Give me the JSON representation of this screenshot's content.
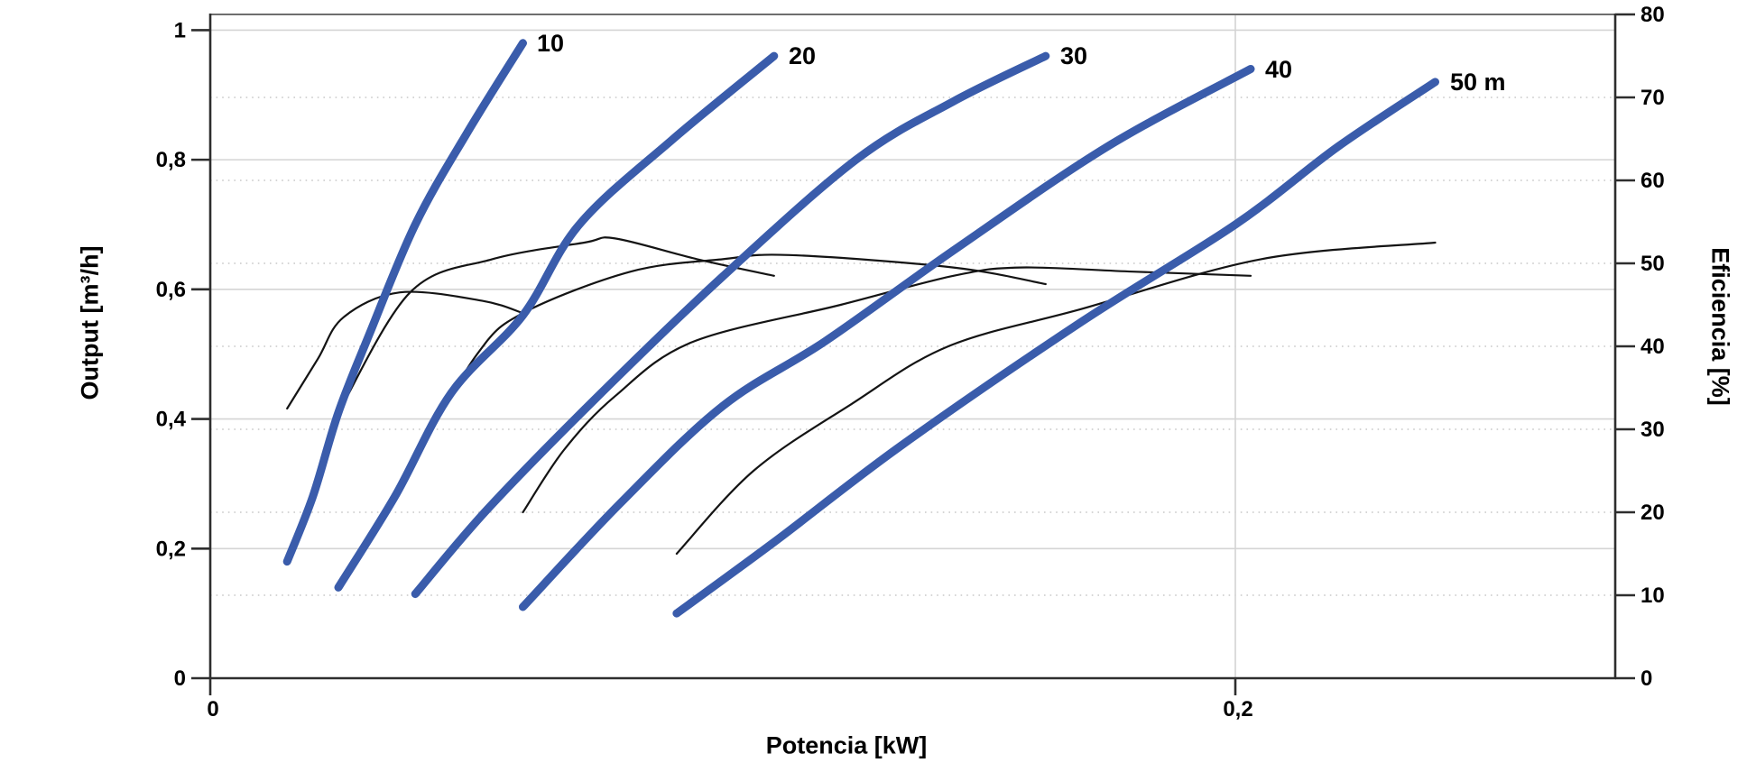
{
  "page": {
    "background": "#ffffff"
  },
  "chart_data": {
    "type": "line",
    "title": "",
    "xlabel": "Potencia [kW]",
    "ylabel_left": "Output [m³/h]",
    "ylabel_right": "Eficiencia [%]",
    "legend": "none",
    "x_axis": {
      "min": 0,
      "max": 0.274,
      "ticks": [
        {
          "v": 0,
          "label": "0"
        },
        {
          "v": 0.2,
          "label": "0,2"
        }
      ]
    },
    "y_axis_left": {
      "min": 0,
      "max": 1.024,
      "ticks": [
        {
          "v": 0,
          "label": "0"
        },
        {
          "v": 0.2,
          "label": "0,2"
        },
        {
          "v": 0.4,
          "label": "0,4"
        },
        {
          "v": 0.6,
          "label": "0,6"
        },
        {
          "v": 0.8,
          "label": "0,8"
        },
        {
          "v": 1,
          "label": "1"
        }
      ]
    },
    "y_axis_right": {
      "min": 0,
      "max": 80,
      "ticks": [
        {
          "v": 0,
          "label": "0"
        },
        {
          "v": 10,
          "label": "10"
        },
        {
          "v": 20,
          "label": "20"
        },
        {
          "v": 30,
          "label": "30"
        },
        {
          "v": 40,
          "label": "40"
        },
        {
          "v": 50,
          "label": "50"
        },
        {
          "v": 60,
          "label": "60"
        },
        {
          "v": 70,
          "label": "70"
        },
        {
          "v": 80,
          "label": "80"
        }
      ]
    },
    "grid": {
      "solid_output_lines": [
        0.2,
        0.4,
        0.6,
        0.8,
        1.0
      ],
      "dotted_efficiency_lines": [
        10,
        20,
        30,
        40,
        50,
        60,
        70
      ],
      "vertical_power_lines": [
        0.2
      ]
    },
    "pump_curves": [
      {
        "label": "10",
        "head_m": 10,
        "points_kw_m3h": [
          [
            0.015,
            0.18
          ],
          [
            0.02,
            0.28
          ],
          [
            0.025,
            0.41
          ],
          [
            0.031,
            0.53
          ],
          [
            0.04,
            0.7
          ],
          [
            0.05,
            0.84
          ],
          [
            0.061,
            0.98
          ]
        ]
      },
      {
        "label": "20",
        "head_m": 20,
        "points_kw_m3h": [
          [
            0.025,
            0.14
          ],
          [
            0.036,
            0.28
          ],
          [
            0.047,
            0.44
          ],
          [
            0.061,
            0.56
          ],
          [
            0.072,
            0.7
          ],
          [
            0.09,
            0.83
          ],
          [
            0.11,
            0.96
          ]
        ]
      },
      {
        "label": "30",
        "head_m": 30,
        "points_kw_m3h": [
          [
            0.04,
            0.13
          ],
          [
            0.054,
            0.26
          ],
          [
            0.075,
            0.43
          ],
          [
            0.1,
            0.62
          ],
          [
            0.126,
            0.8
          ],
          [
            0.145,
            0.89
          ],
          [
            0.163,
            0.96
          ]
        ]
      },
      {
        "label": "40",
        "head_m": 40,
        "points_kw_m3h": [
          [
            0.061,
            0.11
          ],
          [
            0.08,
            0.27
          ],
          [
            0.1,
            0.42
          ],
          [
            0.12,
            0.52
          ],
          [
            0.145,
            0.66
          ],
          [
            0.175,
            0.82
          ],
          [
            0.203,
            0.94
          ]
        ]
      },
      {
        "label": "50 m",
        "head_m": 50,
        "points_kw_m3h": [
          [
            0.091,
            0.1
          ],
          [
            0.11,
            0.21
          ],
          [
            0.135,
            0.36
          ],
          [
            0.17,
            0.55
          ],
          [
            0.2,
            0.7
          ],
          [
            0.22,
            0.82
          ],
          [
            0.239,
            0.92
          ]
        ]
      }
    ],
    "efficiency_curves": [
      {
        "head_m": 10,
        "points_kw_pct": [
          [
            0.015,
            32.5
          ],
          [
            0.021,
            38.5
          ],
          [
            0.026,
            43.5
          ],
          [
            0.037,
            46.5
          ],
          [
            0.053,
            45.5
          ],
          [
            0.061,
            44
          ]
        ]
      },
      {
        "head_m": 20,
        "points_kw_pct": [
          [
            0.025,
            32
          ],
          [
            0.039,
            46.5
          ],
          [
            0.055,
            50.5
          ],
          [
            0.073,
            52.5
          ],
          [
            0.079,
            53
          ],
          [
            0.095,
            50.5
          ],
          [
            0.11,
            48.5
          ]
        ]
      },
      {
        "head_m": 30,
        "points_kw_pct": [
          [
            0.04,
            26.5
          ],
          [
            0.052,
            39
          ],
          [
            0.061,
            44
          ],
          [
            0.082,
            49
          ],
          [
            0.1,
            50.5
          ],
          [
            0.113,
            51
          ],
          [
            0.145,
            49.5
          ],
          [
            0.163,
            47.5
          ]
        ]
      },
      {
        "head_m": 40,
        "points_kw_pct": [
          [
            0.061,
            20
          ],
          [
            0.069,
            27.5
          ],
          [
            0.079,
            34
          ],
          [
            0.094,
            40.5
          ],
          [
            0.123,
            45
          ],
          [
            0.145,
            48.5
          ],
          [
            0.158,
            49.5
          ],
          [
            0.18,
            49
          ],
          [
            0.203,
            48.5
          ]
        ]
      },
      {
        "head_m": 50,
        "points_kw_pct": [
          [
            0.091,
            15
          ],
          [
            0.106,
            25
          ],
          [
            0.125,
            33
          ],
          [
            0.144,
            40
          ],
          [
            0.17,
            44.5
          ],
          [
            0.205,
            50.5
          ],
          [
            0.239,
            52.5
          ]
        ]
      }
    ],
    "style": {
      "pump_curve_color": "#3A5CAB",
      "efficiency_curve_color": "#141414",
      "axis_color": "#2e2e2e",
      "top_frame_color": "#6e6e6e",
      "solid_grid_color": "#d4d4d4",
      "dotted_grid_color": "#c9c9c9"
    }
  }
}
